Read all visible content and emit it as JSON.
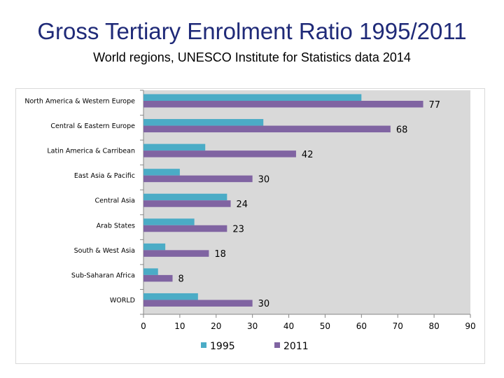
{
  "title": "Gross Tertiary Enrolment Ratio 1995/2011",
  "subtitle": "World regions, UNESCO Institute for Statistics data 2014",
  "colors": {
    "title": "#1f2a78",
    "series_1995": "#4bacc6",
    "series_2011": "#8064a2",
    "plot_bg": "#d9d9d9"
  },
  "chart_data": {
    "type": "bar",
    "orientation": "horizontal",
    "categories": [
      "North America & Western Europe",
      "Central & Eastern Europe",
      "Latin America & Carribean",
      "East Asia & Pacific",
      "Central Asia",
      "Arab States",
      "South & West Asia",
      "Sub-Saharan Africa",
      "WORLD"
    ],
    "series": [
      {
        "name": "1995",
        "values": [
          60,
          33,
          17,
          10,
          23,
          14,
          6,
          4,
          15
        ],
        "labeled": false
      },
      {
        "name": "2011",
        "values": [
          77,
          68,
          42,
          30,
          24,
          23,
          18,
          8,
          30
        ],
        "labeled": true
      }
    ],
    "xlim": [
      0,
      90
    ],
    "xticks": [
      0,
      10,
      20,
      30,
      40,
      50,
      60,
      70,
      80,
      90
    ],
    "grid": false,
    "legend": "bottom"
  }
}
